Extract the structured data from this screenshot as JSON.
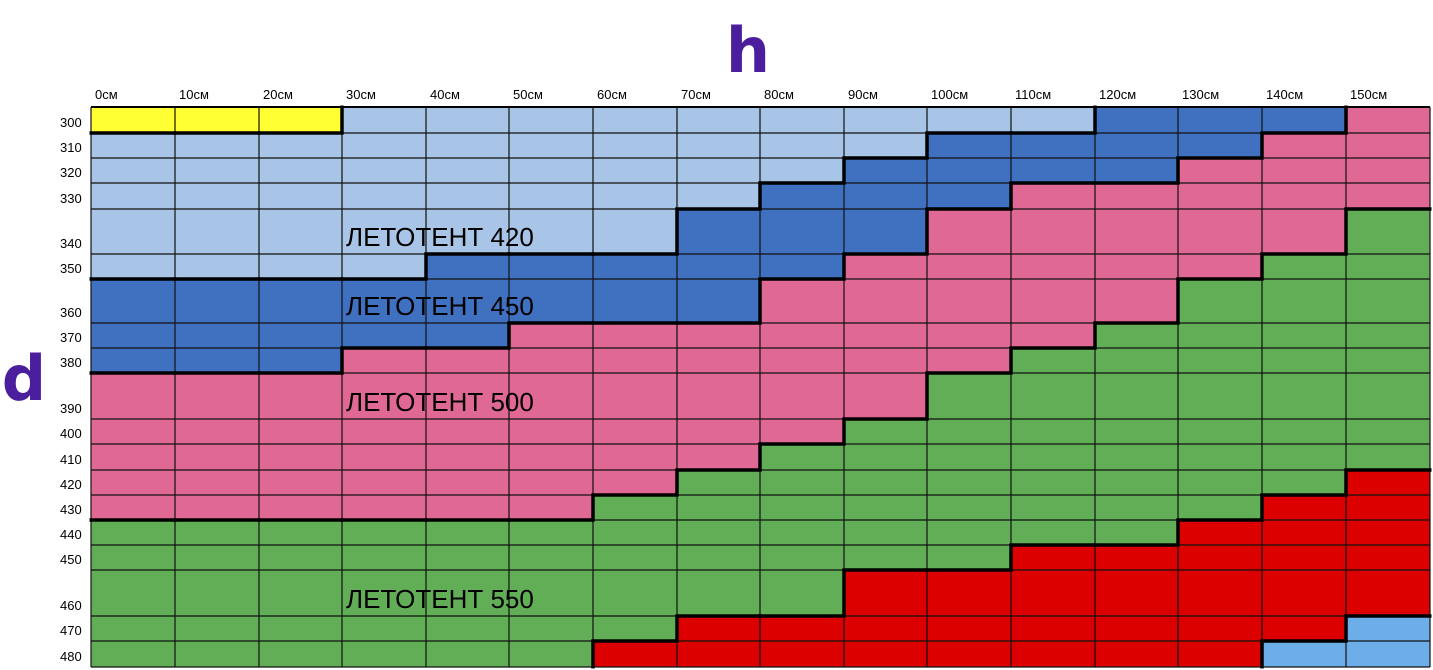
{
  "chart_data": {
    "type": "heatmap",
    "x_axis_label": "h",
    "y_axis_label": "d",
    "columns": [
      "0см",
      "10см",
      "20см",
      "30см",
      "40см",
      "50см",
      "60см",
      "70см",
      "80см",
      "90см",
      "100см",
      "110см",
      "120см",
      "130см",
      "140см",
      "150см"
    ],
    "rows": [
      "300",
      "310",
      "320",
      "330",
      "340",
      "350",
      "360",
      "370",
      "380",
      "390",
      "400",
      "410",
      "420",
      "430",
      "440",
      "450",
      "460",
      "470",
      "480"
    ],
    "zones": [
      {
        "key": "Y",
        "color": "#ffff33"
      },
      {
        "key": "L",
        "color": "#a8c4e6"
      },
      {
        "key": "B",
        "color": "#3f71c0"
      },
      {
        "key": "P",
        "color": "#e06894"
      },
      {
        "key": "G",
        "color": "#62ae57"
      },
      {
        "key": "R",
        "color": "#dd0000"
      },
      {
        "key": "S",
        "color": "#6eaee8"
      }
    ],
    "grid": [
      "YYYLLLLLLLLLBBBP",
      "LLLLLLLLLLBBBBPP",
      "LLLLLLLLLBBBBPPP",
      "LLLLLLLLBBBPPPPP",
      "LLLLLLLBBBPPPPPG",
      "LLLLBBBBBPPPPPGG",
      "BBBBBBBBPPPPPGGG",
      "BBBBBPPPPPPPGGGG",
      "BBBPPPPPPPPGGGGG",
      "PPPPPPPPPPGGGGGG",
      "PPPPPPPPPGGGGGGG",
      "PPPPPPPPGGGGGGGG",
      "PPPPPPPGGGGGGGGR",
      "PPPPPPGGGGGGGGRR",
      "GGGGGGGGGGGGGRRR",
      "GGGGGGGGGGGRRRRR",
      "GGGGGGGGGRRRRRRR",
      "GGGGGGGRRRRRRRRS",
      "GGGGGGRRRRRRRRSS"
    ],
    "zone_labels": [
      {
        "text": "ЛЕТОТЕНТ 420",
        "row": 4,
        "col": 3
      },
      {
        "text": "ЛЕТОТЕНТ 450",
        "row": 6,
        "col": 3
      },
      {
        "text": "ЛЕТОТЕНТ 500",
        "row": 9,
        "col": 3
      },
      {
        "text": "ЛЕТОТЕНТ 550",
        "row": 16,
        "col": 3
      }
    ]
  }
}
